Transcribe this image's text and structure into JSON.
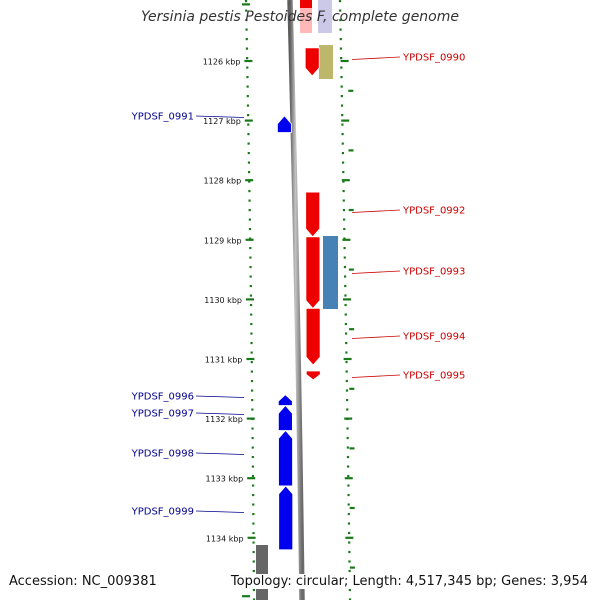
{
  "header": {
    "title": "Yersinia pestis Pestoides F, complete genome"
  },
  "footer": {
    "accession": "Accession: NC_009381",
    "summary": "Topology: circular; Length: 4,517,345 bp; Genes: 3,954"
  },
  "colors": {
    "forward_gene": "#0000ee",
    "reverse_gene": "#ee0000",
    "backbone": "#808080",
    "tick": "#1a7a1a",
    "label_forward": "#00008b",
    "label_reverse": "#cc0000",
    "feature_olive": "#bdb76b",
    "feature_steelblue": "#4682b4",
    "feature_gray": "#666666"
  },
  "ruler": {
    "unit": "kbp",
    "ticks": [
      {
        "value": 1126,
        "label": "1126 kbp"
      },
      {
        "value": 1127,
        "label": "1127 kbp"
      },
      {
        "value": 1128,
        "label": "1128 kbp"
      },
      {
        "value": 1129,
        "label": "1129 kbp"
      },
      {
        "value": 1130,
        "label": "1130 kbp"
      },
      {
        "value": 1131,
        "label": "1131 kbp"
      },
      {
        "value": 1132,
        "label": "1132 kbp"
      },
      {
        "value": 1133,
        "label": "1133 kbp"
      },
      {
        "value": 1134,
        "label": "1134 kbp"
      }
    ]
  },
  "features": [
    {
      "name": "YPDSF_0990",
      "strand": "reverse",
      "start_kbp": 1125.78,
      "end_kbp": 1126.25
    },
    {
      "name": "YPDSF_0991",
      "strand": "forward",
      "start_kbp": 1126.92,
      "end_kbp": 1127.2
    },
    {
      "name": "YPDSF_0992",
      "strand": "reverse",
      "start_kbp": 1128.2,
      "end_kbp": 1128.95
    },
    {
      "name": "YPDSF_0993",
      "strand": "reverse",
      "start_kbp": 1128.95,
      "end_kbp": 1130.15
    },
    {
      "name": "YPDSF_0994",
      "strand": "reverse",
      "start_kbp": 1130.15,
      "end_kbp": 1131.1
    },
    {
      "name": "YPDSF_0995",
      "strand": "reverse",
      "start_kbp": 1131.2,
      "end_kbp": 1131.35
    },
    {
      "name": "YPDSF_0996",
      "strand": "forward",
      "start_kbp": 1131.6,
      "end_kbp": 1131.78
    },
    {
      "name": "YPDSF_0997",
      "strand": "forward",
      "start_kbp": 1131.78,
      "end_kbp": 1132.2
    },
    {
      "name": "YPDSF_0998",
      "strand": "forward",
      "start_kbp": 1132.2,
      "end_kbp": 1133.13
    },
    {
      "name": "YPDSF_0999",
      "strand": "forward",
      "start_kbp": 1133.13,
      "end_kbp": 1134.2
    }
  ]
}
